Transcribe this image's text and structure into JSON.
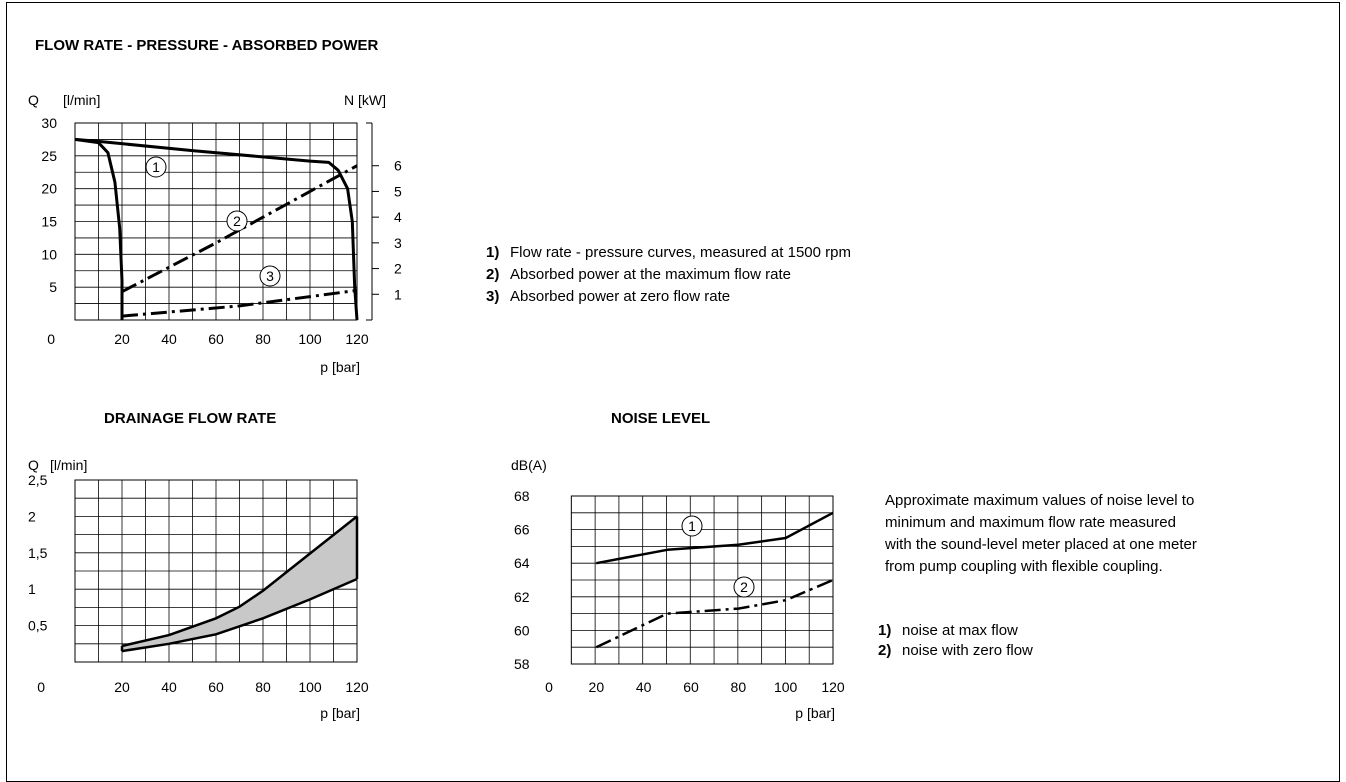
{
  "texts": {
    "main_title": "FLOW RATE - PRESSURE - ABSORBED POWER",
    "drain_title": "DRAINAGE FLOW RATE",
    "noise_title": "NOISE LEVEL",
    "noise_para": [
      "Approximate maximum values of noise level to",
      "minimum and maximum flow rate measured",
      "with the sound-level meter placed at one meter",
      "from pump coupling with flexible coupling."
    ]
  },
  "legend_main": [
    {
      "num": "1)",
      "text": "Flow rate - pressure curves, measured at 1500 rpm"
    },
    {
      "num": "2)",
      "text": "Absorbed power at the maximum flow rate"
    },
    {
      "num": "3)",
      "text": "Absorbed power at zero flow rate"
    }
  ],
  "legend_noise": [
    {
      "num": "1)",
      "text": "noise at max flow"
    },
    {
      "num": "2)",
      "text": "noise with zero flow"
    }
  ],
  "chart_data": [
    {
      "type": "line",
      "title": "FLOW RATE - PRESSURE - ABSORBED POWER",
      "xlabel": "p [bar]",
      "ylabel": "Q  [l/min]",
      "y2label": "N [kW]",
      "xlim": [
        0,
        120
      ],
      "ylim": [
        0,
        30
      ],
      "y2lim": [
        0,
        7
      ],
      "xticks": [
        "0",
        "20",
        "40",
        "60",
        "80",
        "100",
        "120"
      ],
      "yticks": [
        "5",
        "10",
        "15",
        "20",
        "25",
        "30"
      ],
      "y2ticks": [
        "1",
        "2",
        "3",
        "4",
        "5",
        "6"
      ],
      "grid": true,
      "series": [
        {
          "name": "1",
          "label": "1",
          "axis": "Q",
          "style": "solid",
          "x": [
            0,
            10,
            50,
            100,
            108,
            112,
            116,
            118,
            119,
            120
          ],
          "y": [
            27.5,
            27.2,
            25.8,
            24.2,
            24.0,
            22.8,
            20,
            15,
            5,
            0
          ]
        },
        {
          "name": "1",
          "label": "",
          "axis": "Q",
          "style": "solid",
          "x": [
            0,
            10,
            14,
            17,
            19,
            20,
            20
          ],
          "y": [
            27.5,
            27,
            25.5,
            21,
            14,
            6,
            0
          ]
        },
        {
          "name": "2",
          "label": "2",
          "axis": "N",
          "style": "dashdot",
          "x": [
            20,
            60,
            120
          ],
          "y": [
            1.1,
            3.0,
            6.0
          ]
        },
        {
          "name": "3",
          "label": "3",
          "axis": "N",
          "style": "dashdot",
          "x": [
            20,
            70,
            120
          ],
          "y": [
            0.15,
            0.55,
            1.15
          ]
        }
      ]
    },
    {
      "type": "area",
      "title": "DRAINAGE FLOW RATE",
      "xlabel": "p [bar]",
      "ylabel": "Q  [l/min]",
      "xlim": [
        0,
        120
      ],
      "ylim": [
        0,
        2.5
      ],
      "xticks": [
        "0",
        "20",
        "40",
        "60",
        "80",
        "100",
        "120"
      ],
      "yticks": [
        "0,5",
        "1",
        "1,5",
        "2",
        "2,5"
      ],
      "grid": true,
      "series": [
        {
          "name": "upper",
          "x": [
            20,
            40,
            60,
            70,
            80,
            100,
            120
          ],
          "y": [
            0.22,
            0.37,
            0.6,
            0.76,
            0.98,
            1.49,
            2.0
          ]
        },
        {
          "name": "lower",
          "x": [
            20,
            40,
            60,
            80,
            100,
            120
          ],
          "y": [
            0.15,
            0.25,
            0.38,
            0.6,
            0.86,
            1.14
          ]
        }
      ]
    },
    {
      "type": "line",
      "title": "NOISE LEVEL",
      "xlabel": "p [bar]",
      "ylabel": "dB(A)",
      "xlim": [
        0,
        120
      ],
      "ylim": [
        58,
        68
      ],
      "xticks": [
        "0",
        "20",
        "40",
        "60",
        "80",
        "100",
        "120"
      ],
      "yticks": [
        "58",
        "60",
        "62",
        "64",
        "66",
        "68"
      ],
      "grid": true,
      "series": [
        {
          "name": "1",
          "label": "1",
          "style": "solid",
          "x": [
            20,
            50,
            80,
            100,
            120
          ],
          "y": [
            64,
            64.8,
            65.1,
            65.5,
            67
          ]
        },
        {
          "name": "2",
          "label": "2",
          "style": "dashdot",
          "x": [
            20,
            50,
            80,
            100,
            120
          ],
          "y": [
            59,
            61,
            61.3,
            61.8,
            63
          ]
        }
      ]
    }
  ]
}
